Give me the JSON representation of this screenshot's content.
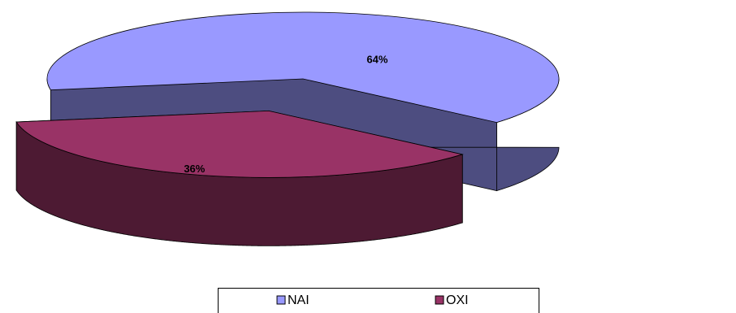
{
  "chart_data": {
    "type": "pie",
    "categories": [
      "NAI",
      "OXI"
    ],
    "values": [
      64,
      36
    ],
    "value_labels": [
      "64%",
      "36%"
    ],
    "colors": [
      "#9999ff",
      "#993366"
    ],
    "legend": "bottom"
  }
}
